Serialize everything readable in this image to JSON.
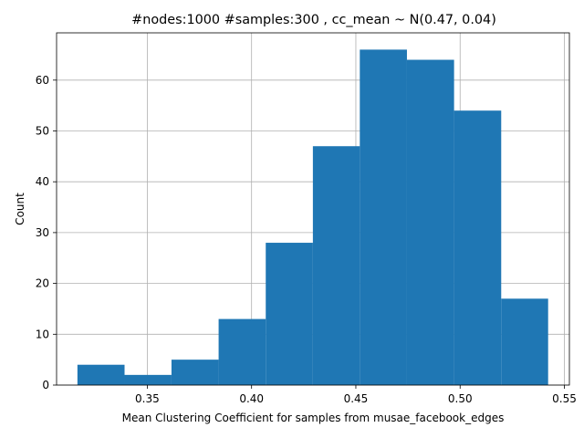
{
  "chart_data": {
    "type": "bar",
    "title": "#nodes:1000 #samples:300 , cc_mean ~ N(0.47, 0.04)",
    "xlabel": "Mean Clustering Coefficient for samples from musae_facebook_edges",
    "ylabel": "Count",
    "bin_edges": [
      0.3165,
      0.3391,
      0.3616,
      0.3842,
      0.4068,
      0.4294,
      0.4519,
      0.4745,
      0.4971,
      0.5197,
      0.5422
    ],
    "values": [
      4,
      2,
      5,
      13,
      28,
      47,
      66,
      64,
      54,
      17
    ],
    "xlim": [
      0.3065,
      0.5524
    ],
    "ylim": [
      0,
      69.3
    ],
    "xticks": [
      0.35,
      0.4,
      0.45,
      0.5,
      0.55
    ],
    "xtick_labels": [
      "0.35",
      "0.40",
      "0.45",
      "0.50",
      "0.55"
    ],
    "yticks": [
      0,
      10,
      20,
      30,
      40,
      50,
      60
    ],
    "ytick_labels": [
      "0",
      "10",
      "20",
      "30",
      "40",
      "50",
      "60"
    ],
    "grid": true,
    "bar_color": "#1f77b4"
  }
}
